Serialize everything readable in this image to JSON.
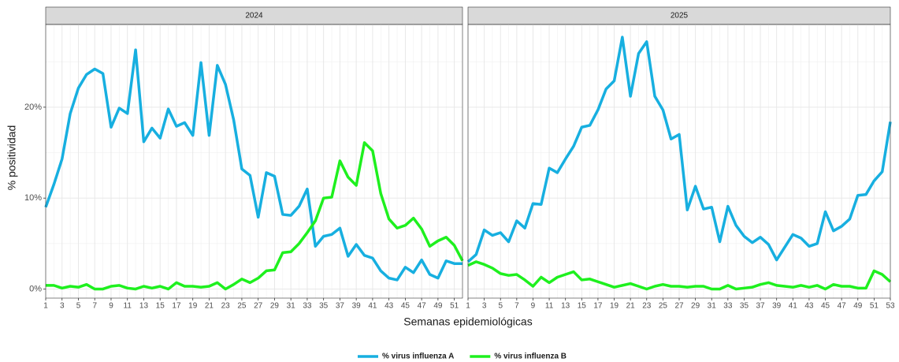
{
  "chart_data": [
    {
      "type": "line",
      "title": "2024",
      "x_label": "Semanas epidemiológicas",
      "y_label": "% positividad",
      "x": [
        1,
        2,
        3,
        4,
        5,
        6,
        7,
        8,
        9,
        10,
        11,
        12,
        13,
        14,
        15,
        16,
        17,
        18,
        19,
        20,
        21,
        22,
        23,
        24,
        25,
        26,
        27,
        28,
        29,
        30,
        31,
        32,
        33,
        34,
        35,
        36,
        37,
        38,
        39,
        40,
        41,
        42,
        43,
        44,
        45,
        46,
        47,
        48,
        49,
        50,
        51,
        52
      ],
      "xlim": [
        1,
        52
      ],
      "xticks": [
        1,
        3,
        5,
        7,
        9,
        11,
        13,
        15,
        17,
        19,
        21,
        23,
        25,
        27,
        29,
        31,
        33,
        35,
        37,
        39,
        41,
        43,
        45,
        47,
        49,
        51
      ],
      "ylim": [
        -1.0,
        29.1
      ],
      "yticks": [
        {
          "value": 0,
          "label": "0%"
        },
        {
          "value": 10,
          "label": "10%"
        },
        {
          "value": 20,
          "label": "20%"
        }
      ],
      "grid": true,
      "legend": "bottom",
      "series": [
        {
          "name": "% virus influenza A",
          "color": "#17afe0",
          "values": [
            9.0,
            11.5,
            14.3,
            19.3,
            22.1,
            23.6,
            24.2,
            23.7,
            17.8,
            19.9,
            19.3,
            26.3,
            16.2,
            17.7,
            16.6,
            19.8,
            17.9,
            18.3,
            16.9,
            24.9,
            16.9,
            24.6,
            22.5,
            18.6,
            13.2,
            12.5,
            7.9,
            12.8,
            12.4,
            8.2,
            8.1,
            9.1,
            11.0,
            4.7,
            5.8,
            6.0,
            6.7,
            3.6,
            4.9,
            3.7,
            3.4,
            2.0,
            1.2,
            1.0,
            2.4,
            1.8,
            3.2,
            1.6,
            1.2,
            3.1,
            2.8,
            2.8
          ]
        },
        {
          "name": "% virus influenza B",
          "color": "#1ef01e",
          "values": [
            0.4,
            0.4,
            0.1,
            0.3,
            0.2,
            0.5,
            0.0,
            0.0,
            0.3,
            0.4,
            0.1,
            0.0,
            0.3,
            0.1,
            0.3,
            0.0,
            0.7,
            0.3,
            0.3,
            0.2,
            0.3,
            0.7,
            0.0,
            0.5,
            1.1,
            0.7,
            1.2,
            2.0,
            2.1,
            4.0,
            4.1,
            5.0,
            6.2,
            7.5,
            10.0,
            10.1,
            14.1,
            12.3,
            11.4,
            16.1,
            15.2,
            10.5,
            7.7,
            6.7,
            7.0,
            7.8,
            6.6,
            4.7,
            5.3,
            5.7,
            4.8,
            3.1
          ]
        }
      ]
    },
    {
      "type": "line",
      "title": "2025",
      "x": [
        1,
        2,
        3,
        4,
        5,
        6,
        7,
        8,
        9,
        10,
        11,
        12,
        13,
        14,
        15,
        16,
        17,
        18,
        19,
        20,
        21,
        22,
        23,
        24,
        25,
        26,
        27,
        28,
        29,
        30,
        31,
        32,
        33,
        34,
        35,
        36,
        37,
        38,
        39,
        40,
        41,
        42,
        43,
        44,
        45,
        46,
        47,
        48,
        49,
        50,
        51,
        52,
        53
      ],
      "xlim": [
        1,
        53
      ],
      "xticks": [
        1,
        3,
        5,
        7,
        9,
        11,
        13,
        15,
        17,
        19,
        21,
        23,
        25,
        27,
        29,
        31,
        33,
        35,
        37,
        39,
        41,
        43,
        45,
        47,
        49,
        51,
        53
      ],
      "ylim": [
        -1.0,
        29.1
      ],
      "yticks": [
        0,
        10,
        20
      ],
      "grid": true,
      "series": [
        {
          "color": "#17afe0",
          "values": [
            3.0,
            3.8,
            6.5,
            5.9,
            6.2,
            5.2,
            7.5,
            6.7,
            9.4,
            9.3,
            13.3,
            12.8,
            14.3,
            15.7,
            17.8,
            18.0,
            19.7,
            22.0,
            22.9,
            27.7,
            21.2,
            25.9,
            27.2,
            21.2,
            19.7,
            16.5,
            17.0,
            8.7,
            11.3,
            8.8,
            9.0,
            5.2,
            9.1,
            7.0,
            5.8,
            5.1,
            5.7,
            4.9,
            3.2,
            4.6,
            6.0,
            5.6,
            4.7,
            5.0,
            8.5,
            6.4,
            6.9,
            7.7,
            10.3,
            10.4,
            11.9,
            12.9,
            18.4
          ]
        },
        {
          "color": "#1ef01e",
          "values": [
            2.6,
            3.0,
            2.7,
            2.3,
            1.7,
            1.5,
            1.6,
            1.0,
            0.3,
            1.3,
            0.7,
            1.3,
            1.6,
            1.9,
            1.0,
            1.1,
            0.8,
            0.5,
            0.2,
            0.4,
            0.6,
            0.3,
            0.0,
            0.3,
            0.5,
            0.3,
            0.3,
            0.2,
            0.3,
            0.3,
            0.0,
            0.0,
            0.4,
            0.0,
            0.1,
            0.2,
            0.5,
            0.7,
            0.4,
            0.3,
            0.2,
            0.4,
            0.2,
            0.4,
            0.0,
            0.5,
            0.3,
            0.3,
            0.1,
            0.1,
            2.0,
            1.6,
            0.8
          ]
        }
      ]
    }
  ]
}
